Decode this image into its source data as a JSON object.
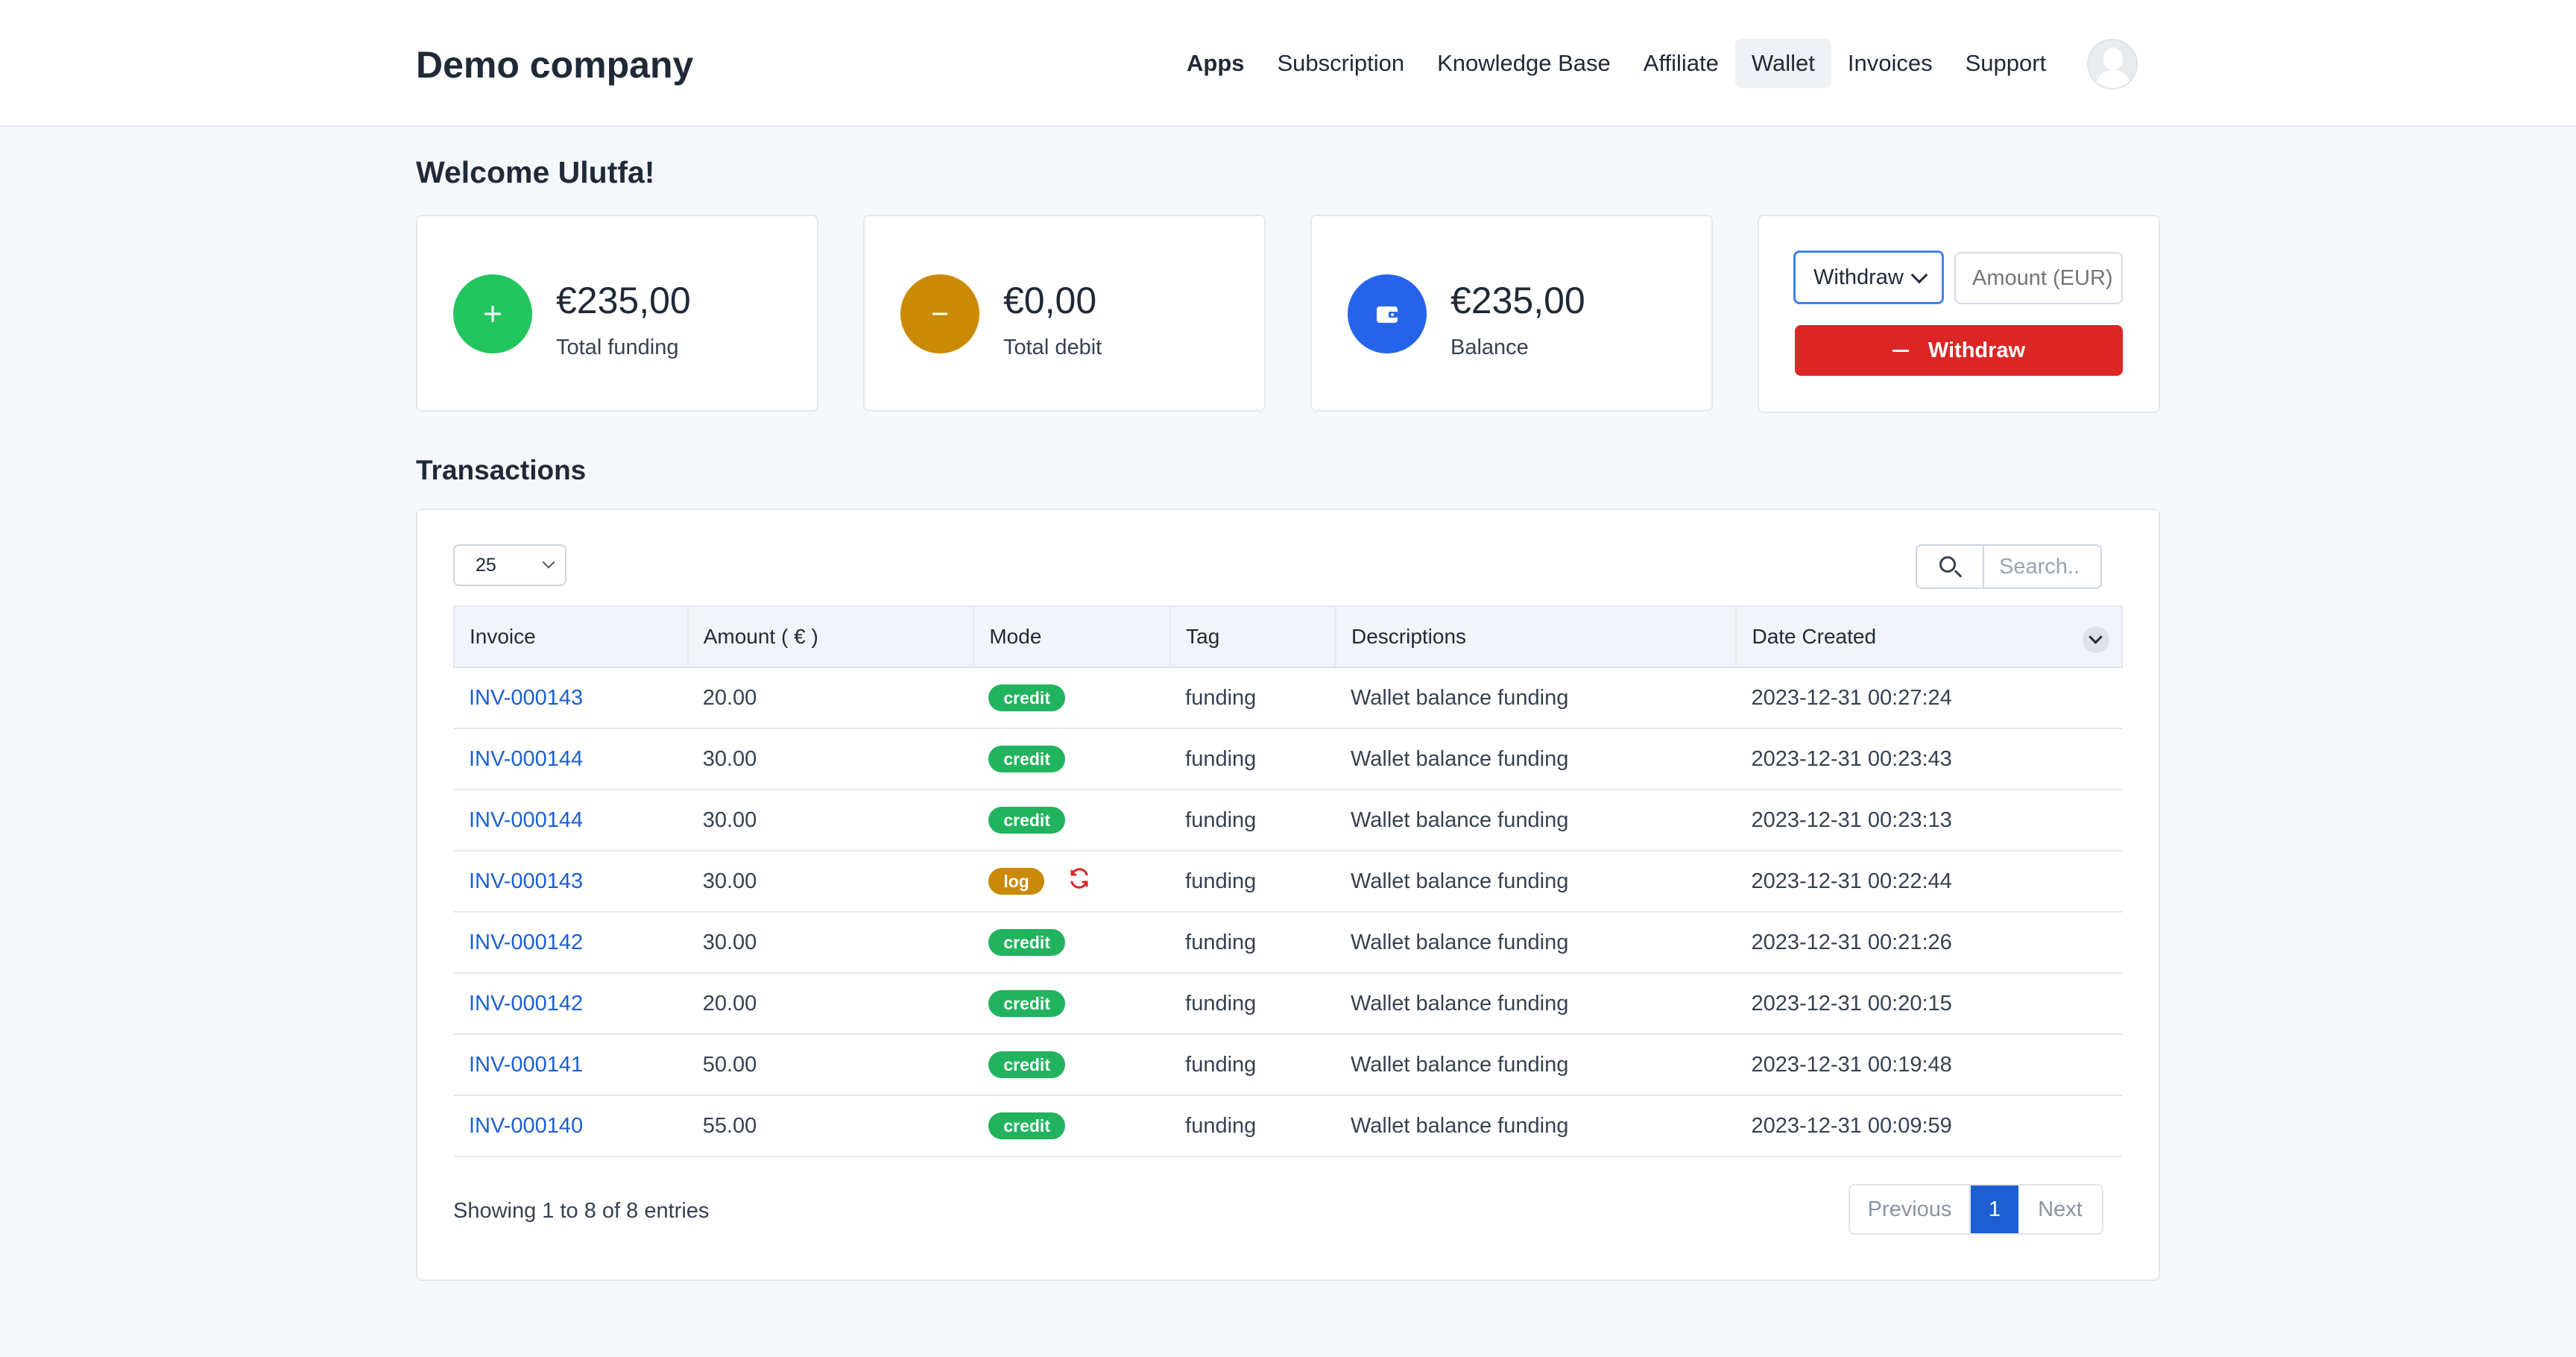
{
  "header": {
    "brand": "Demo company",
    "nav": [
      {
        "label": "Apps"
      },
      {
        "label": "Subscription"
      },
      {
        "label": "Knowledge Base"
      },
      {
        "label": "Affiliate"
      },
      {
        "label": "Wallet"
      },
      {
        "label": "Invoices"
      },
      {
        "label": "Support"
      }
    ]
  },
  "welcome": "Welcome Ulutfa!",
  "stats": {
    "funding": {
      "amount": "€235,00",
      "label": "Total funding",
      "icon": "plus-icon",
      "color": "#22c55e"
    },
    "debit": {
      "amount": "€0,00",
      "label": "Total debit",
      "icon": "minus-icon",
      "color": "#ca8a04"
    },
    "balance": {
      "amount": "€235,00",
      "label": "Balance",
      "icon": "wallet-icon",
      "color": "#2563eb"
    }
  },
  "withdraw": {
    "select_value": "Withdraw",
    "amount_placeholder": "Amount (EUR)",
    "button_label": "Withdraw",
    "button_color": "#dc2626"
  },
  "transactions": {
    "title": "Transactions",
    "per_page": "25",
    "search_placeholder": "Search..",
    "columns": [
      "Invoice",
      "Amount ( € )",
      "Mode",
      "Tag",
      "Descriptions",
      "Date Created"
    ],
    "rows": [
      {
        "invoice": "INV-000143",
        "amount": "20.00",
        "mode": "credit",
        "tag": "funding",
        "description": "Wallet balance funding",
        "date": "2023-12-31 00:27:24"
      },
      {
        "invoice": "INV-000144",
        "amount": "30.00",
        "mode": "credit",
        "tag": "funding",
        "description": "Wallet balance funding",
        "date": "2023-12-31 00:23:43"
      },
      {
        "invoice": "INV-000144",
        "amount": "30.00",
        "mode": "credit",
        "tag": "funding",
        "description": "Wallet balance funding",
        "date": "2023-12-31 00:23:13"
      },
      {
        "invoice": "INV-000143",
        "amount": "30.00",
        "mode": "log",
        "tag": "funding",
        "description": "Wallet balance funding",
        "date": "2023-12-31 00:22:44"
      },
      {
        "invoice": "INV-000142",
        "amount": "30.00",
        "mode": "credit",
        "tag": "funding",
        "description": "Wallet balance funding",
        "date": "2023-12-31 00:21:26"
      },
      {
        "invoice": "INV-000142",
        "amount": "20.00",
        "mode": "credit",
        "tag": "funding",
        "description": "Wallet balance funding",
        "date": "2023-12-31 00:20:15"
      },
      {
        "invoice": "INV-000141",
        "amount": "50.00",
        "mode": "credit",
        "tag": "funding",
        "description": "Wallet balance funding",
        "date": "2023-12-31 00:19:48"
      },
      {
        "invoice": "INV-000140",
        "amount": "55.00",
        "mode": "credit",
        "tag": "funding",
        "description": "Wallet balance funding",
        "date": "2023-12-31 00:09:59"
      }
    ],
    "showing": "Showing 1 to 8 of 8 entries",
    "pagination": {
      "previous": "Previous",
      "current": "1",
      "next": "Next"
    }
  }
}
